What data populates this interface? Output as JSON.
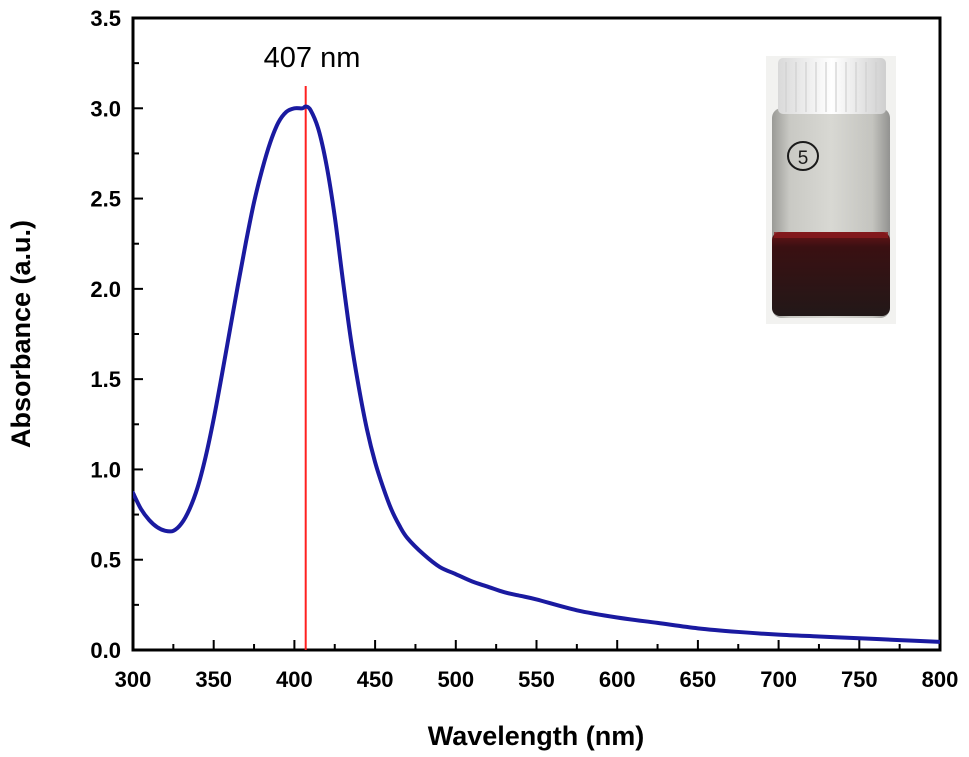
{
  "chart_data": {
    "type": "line",
    "xlabel": "Wavelength (nm)",
    "ylabel": "Absorbance (a.u.)",
    "xlim": [
      300,
      800
    ],
    "ylim": [
      0.0,
      3.5
    ],
    "x_ticks": [
      "300",
      "350",
      "400",
      "450",
      "500",
      "550",
      "600",
      "650",
      "700",
      "750",
      "800"
    ],
    "y_ticks": [
      "0.0",
      "0.5",
      "1.0",
      "1.5",
      "2.0",
      "2.5",
      "3.0",
      "3.5"
    ],
    "grid": false,
    "series": [
      {
        "color": "#1a1aa0",
        "x": [
          300,
          305,
          310,
          315,
          320,
          325,
          330,
          335,
          340,
          345,
          350,
          355,
          360,
          365,
          370,
          375,
          380,
          385,
          390,
          395,
          400,
          405,
          407,
          410,
          415,
          420,
          425,
          430,
          435,
          440,
          445,
          450,
          455,
          460,
          465,
          470,
          480,
          490,
          500,
          510,
          520,
          530,
          540,
          550,
          575,
          600,
          625,
          650,
          675,
          700,
          725,
          750,
          775,
          800
        ],
        "y": [
          0.87,
          0.78,
          0.72,
          0.68,
          0.66,
          0.66,
          0.7,
          0.78,
          0.9,
          1.07,
          1.28,
          1.52,
          1.77,
          2.02,
          2.26,
          2.48,
          2.66,
          2.81,
          2.92,
          2.98,
          3.0,
          3.0,
          3.01,
          2.99,
          2.88,
          2.68,
          2.4,
          2.05,
          1.72,
          1.45,
          1.22,
          1.04,
          0.9,
          0.78,
          0.69,
          0.62,
          0.53,
          0.46,
          0.42,
          0.38,
          0.35,
          0.32,
          0.3,
          0.28,
          0.22,
          0.18,
          0.15,
          0.12,
          0.1,
          0.085,
          0.075,
          0.065,
          0.055,
          0.045
        ]
      }
    ],
    "annotations": [
      {
        "text": "407 nm",
        "x": 407,
        "line_color": "#ff2020"
      }
    ],
    "inset": {
      "icon": "sample-vial-photo",
      "label": "5"
    }
  }
}
